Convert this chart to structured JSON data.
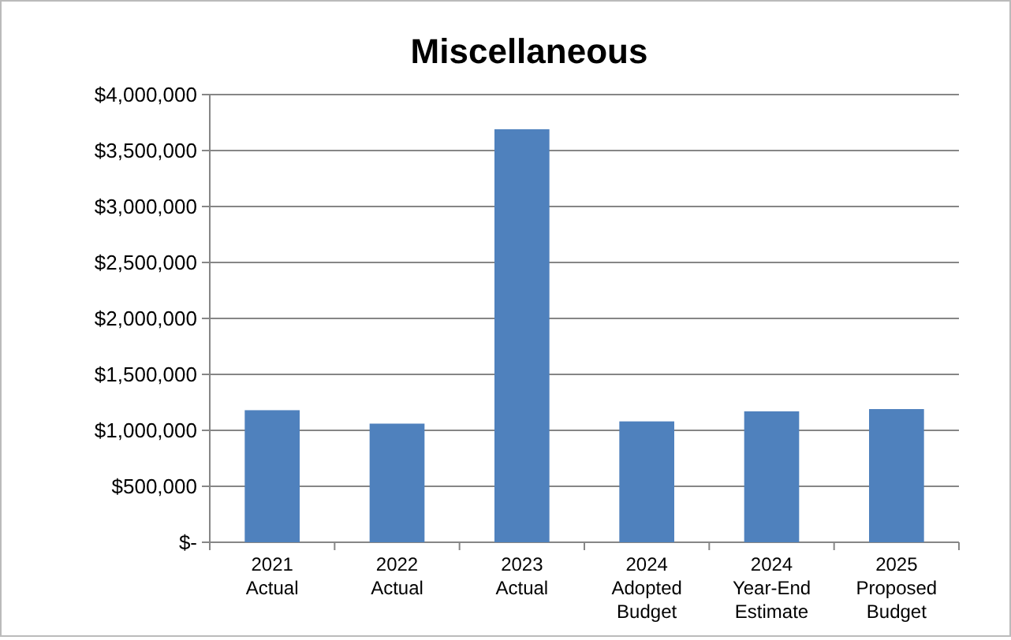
{
  "chart_data": {
    "type": "bar",
    "title": "Miscellaneous",
    "categories": [
      "2021 Actual",
      "2022 Actual",
      "2023 Actual",
      "2024 Adopted Budget",
      "2024 Year-End Estimate",
      "2025 Proposed Budget"
    ],
    "values": [
      1180000,
      1060000,
      3690000,
      1080000,
      1170000,
      1190000
    ],
    "color": "#4f81bd",
    "ylim": [
      0,
      4000000
    ],
    "yticks": [
      {
        "value": 0,
        "label": "$-"
      },
      {
        "value": 500000,
        "label": "$500,000"
      },
      {
        "value": 1000000,
        "label": "$1,000,000"
      },
      {
        "value": 1500000,
        "label": "$1,500,000"
      },
      {
        "value": 2000000,
        "label": "$2,000,000"
      },
      {
        "value": 2500000,
        "label": "$2,500,000"
      },
      {
        "value": 3000000,
        "label": "$3,000,000"
      },
      {
        "value": 3500000,
        "label": "$3,500,000"
      },
      {
        "value": 4000000,
        "label": "$4,000,000"
      }
    ],
    "grid": "y"
  }
}
